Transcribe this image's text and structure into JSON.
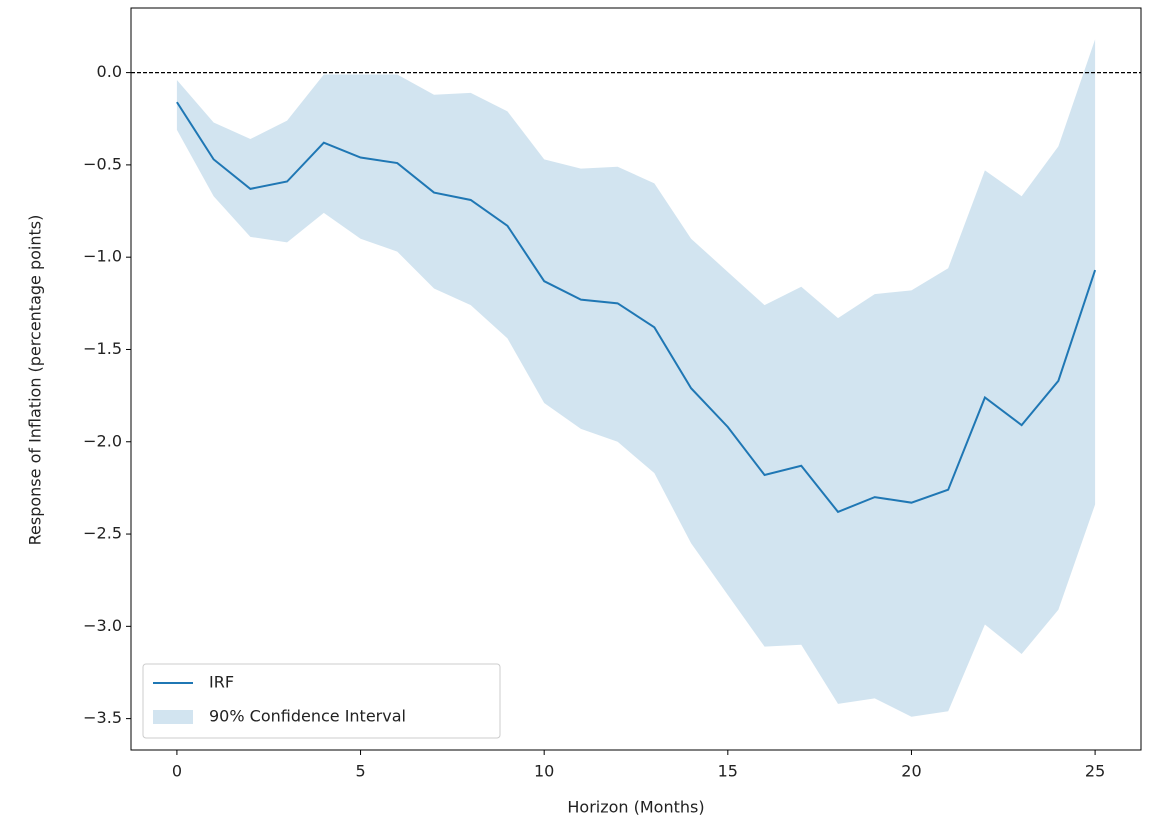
{
  "chart_data": {
    "type": "line",
    "x_label": "Horizon (Months)",
    "y_label": "Response of Inflation (percentage points)",
    "x": [
      0,
      1,
      2,
      3,
      4,
      5,
      6,
      7,
      8,
      9,
      10,
      11,
      12,
      13,
      14,
      15,
      16,
      17,
      18,
      19,
      20,
      21,
      22,
      23,
      24,
      25
    ],
    "series": [
      {
        "name": "IRF",
        "color": "#1f77b4",
        "values": [
          -0.16,
          -0.47,
          -0.63,
          -0.59,
          -0.38,
          -0.46,
          -0.49,
          -0.65,
          -0.69,
          -0.83,
          -1.13,
          -1.23,
          -1.25,
          -1.38,
          -1.71,
          -1.92,
          -2.18,
          -2.13,
          -2.38,
          -2.3,
          -2.33,
          -2.26,
          -1.76,
          -1.91,
          -1.67,
          -1.07
        ]
      }
    ],
    "bands": [
      {
        "name": "90% Confidence Interval",
        "color": "#1f77b4",
        "opacity": 0.2,
        "upper": [
          -0.04,
          -0.27,
          -0.36,
          -0.26,
          -0.01,
          -0.01,
          -0.01,
          -0.12,
          -0.11,
          -0.21,
          -0.47,
          -0.52,
          -0.51,
          -0.6,
          -0.9,
          -1.08,
          -1.26,
          -1.16,
          -1.33,
          -1.2,
          -1.18,
          -1.06,
          -0.53,
          -0.67,
          -0.4,
          0.18
        ],
        "lower": [
          -0.31,
          -0.67,
          -0.89,
          -0.92,
          -0.76,
          -0.9,
          -0.97,
          -1.17,
          -1.26,
          -1.44,
          -1.79,
          -1.93,
          -2.0,
          -2.17,
          -2.55,
          -2.83,
          -3.11,
          -3.1,
          -3.42,
          -3.39,
          -3.49,
          -3.46,
          -2.99,
          -3.15,
          -2.91,
          -2.34
        ]
      }
    ],
    "hline": 0,
    "xlim": [
      -1.25,
      26.25
    ],
    "ylim": [
      -3.67,
      0.35
    ],
    "xticks": [
      0,
      5,
      10,
      15,
      20,
      25
    ],
    "yticks": [
      {
        "value": 0,
        "label": "0.0"
      },
      {
        "value": -0.5,
        "label": "−0.5"
      },
      {
        "value": -1,
        "label": "−1.0"
      },
      {
        "value": -1.5,
        "label": "−1.5"
      },
      {
        "value": -2,
        "label": "−2.0"
      },
      {
        "value": -2.5,
        "label": "−2.5"
      },
      {
        "value": -3,
        "label": "−3.0"
      },
      {
        "value": -3.5,
        "label": "−3.5"
      }
    ],
    "grid": false,
    "legend": "lower-left"
  }
}
